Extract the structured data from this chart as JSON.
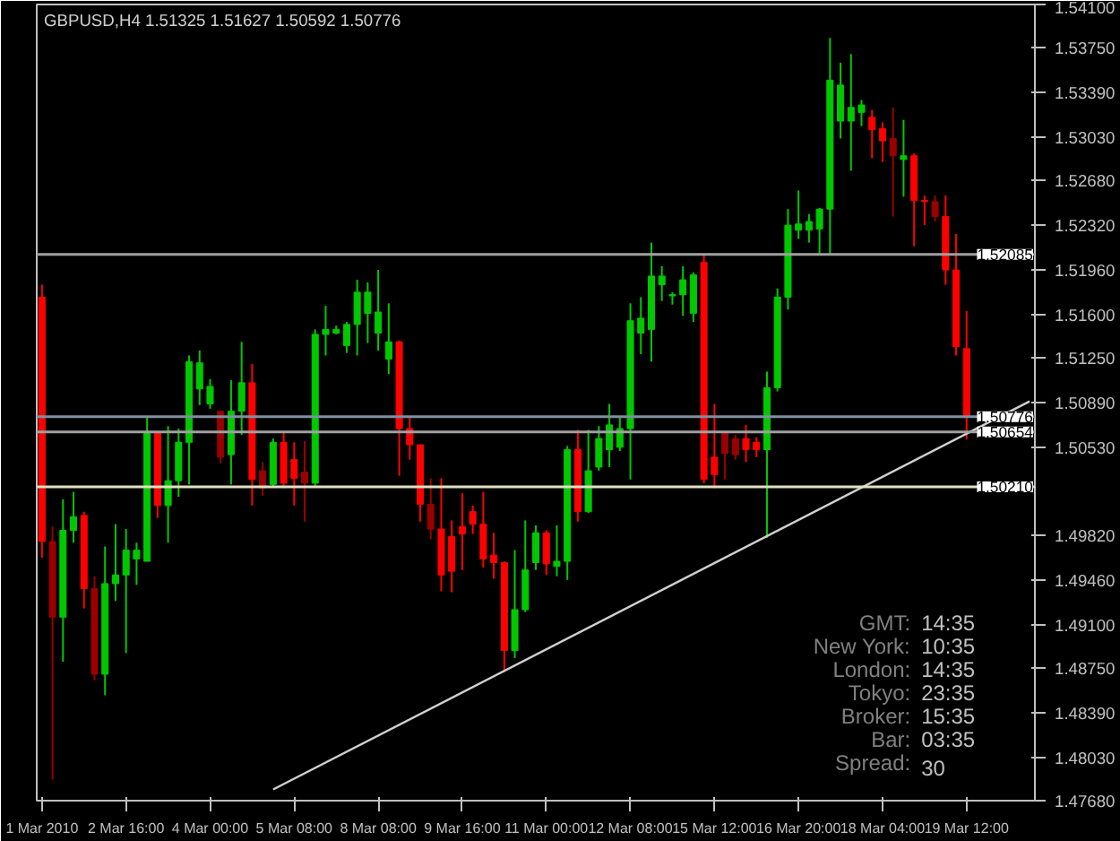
{
  "chart_data": {
    "type": "candlestick",
    "title": "GBPUSD,H4  1.51325 1.51627 1.50592 1.50776",
    "categories": [
      "1 Mar 2010",
      null,
      null,
      null,
      null,
      null,
      null,
      null,
      "2 Mar 16:00",
      null,
      null,
      null,
      null,
      null,
      null,
      null,
      "4 Mar 00:00",
      null,
      null,
      null,
      null,
      null,
      null,
      null,
      "5 Mar 08:00",
      null,
      null,
      null,
      null,
      null,
      null,
      null,
      "8 Mar 08:00",
      null,
      null,
      null,
      null,
      null,
      null,
      null,
      "9 Mar 16:00",
      null,
      null,
      null,
      null,
      null,
      null,
      null,
      "11 Mar 00:00",
      null,
      null,
      null,
      null,
      null,
      null,
      null,
      "12 Mar 08:00",
      null,
      null,
      null,
      null,
      null,
      null,
      null,
      "15 Mar 12:00",
      null,
      null,
      null,
      null,
      null,
      null,
      null,
      "16 Mar 20:00",
      null,
      null,
      null,
      null,
      null,
      null,
      null,
      "18 Mar 04:00",
      null,
      null,
      null,
      null,
      null,
      null,
      null,
      "19 Mar 12:00",
      null,
      null,
      null,
      null,
      null,
      null
    ],
    "ohlc": [
      [
        1.5174,
        1.5184,
        1.4964,
        1.4977
      ],
      [
        1.4977,
        1.4989,
        1.4785,
        1.4916
      ],
      [
        1.4916,
        1.5011,
        1.488,
        1.4986
      ],
      [
        1.4986,
        1.5017,
        1.4976,
        1.4997
      ],
      [
        1.4998,
        1.5001,
        1.4923,
        1.4939
      ],
      [
        1.4939,
        1.4949,
        1.4865,
        1.487
      ],
      [
        1.487,
        1.4973,
        1.4853,
        1.4943
      ],
      [
        1.4943,
        1.4991,
        1.4929,
        1.495
      ],
      [
        1.495,
        1.4987,
        1.4887,
        1.497
      ],
      [
        1.4963,
        1.4976,
        1.4942,
        1.497
      ],
      [
        1.4961,
        1.5077,
        1.4961,
        1.5065
      ],
      [
        1.5065,
        1.5065,
        1.4996,
        1.5006
      ],
      [
        1.5006,
        1.507,
        1.4976,
        1.5026
      ],
      [
        1.5026,
        1.5068,
        1.5013,
        1.5057
      ],
      [
        1.5057,
        1.5127,
        1.5023,
        1.5122
      ],
      [
        1.51,
        1.5131,
        1.5087,
        1.5121
      ],
      [
        1.5088,
        1.5108,
        1.5084,
        1.5102
      ],
      [
        1.5082,
        1.5082,
        1.504,
        1.5045
      ],
      [
        1.5047,
        1.5107,
        1.5023,
        1.5082
      ],
      [
        1.5082,
        1.5138,
        1.5063,
        1.5105
      ],
      [
        1.5105,
        1.512,
        1.5006,
        1.5027
      ],
      [
        1.5034,
        1.5041,
        1.5014,
        1.502
      ],
      [
        1.5023,
        1.506,
        1.5021,
        1.5057
      ],
      [
        1.5057,
        1.5065,
        1.502,
        1.5024
      ],
      [
        1.5043,
        1.5057,
        1.5006,
        1.5028
      ],
      [
        1.5033,
        1.5058,
        1.4993,
        1.5024
      ],
      [
        1.5024,
        1.5148,
        1.5021,
        1.5144
      ],
      [
        1.5144,
        1.5167,
        1.5127,
        1.5148
      ],
      [
        1.5145,
        1.5151,
        1.5144,
        1.5148
      ],
      [
        1.5135,
        1.5154,
        1.5129,
        1.5152
      ],
      [
        1.5152,
        1.5188,
        1.5127,
        1.5178
      ],
      [
        1.5161,
        1.5186,
        1.5137,
        1.5178
      ],
      [
        1.5145,
        1.5196,
        1.5131,
        1.5162
      ],
      [
        1.5124,
        1.5169,
        1.5112,
        1.5138
      ],
      [
        1.5138,
        1.5139,
        1.503,
        1.5068
      ],
      [
        1.5068,
        1.5078,
        1.5043,
        1.5055
      ],
      [
        1.5055,
        1.5055,
        1.4993,
        1.5007
      ],
      [
        1.5007,
        1.5028,
        1.4979,
        1.4987
      ],
      [
        1.4987,
        1.5028,
        1.4937,
        1.495
      ],
      [
        1.4981,
        1.4994,
        1.4936,
        1.4953
      ],
      [
        1.4989,
        1.5016,
        1.4954,
        1.4983
      ],
      [
        1.5001,
        1.5006,
        1.4983,
        1.4991
      ],
      [
        1.4991,
        1.5017,
        1.4956,
        1.4963
      ],
      [
        1.4966,
        1.4984,
        1.4947,
        1.496
      ],
      [
        1.496,
        1.4961,
        1.4872,
        1.4889
      ],
      [
        1.4889,
        1.497,
        1.4883,
        1.4922
      ],
      [
        1.4922,
        1.4994,
        1.492,
        1.4954
      ],
      [
        1.496,
        1.499,
        1.4954,
        1.4984
      ],
      [
        1.4984,
        1.4986,
        1.495,
        1.4959
      ],
      [
        1.4957,
        1.499,
        1.4949,
        1.4961
      ],
      [
        1.4961,
        1.5054,
        1.4946,
        1.5051
      ],
      [
        1.5051,
        1.5067,
        1.4993,
        1.5001
      ],
      [
        1.5001,
        1.5067,
        1.5,
        1.5034
      ],
      [
        1.5037,
        1.507,
        1.5034,
        1.506
      ],
      [
        1.5051,
        1.5088,
        1.5037,
        1.5071
      ],
      [
        1.5053,
        1.5077,
        1.505,
        1.5068
      ],
      [
        1.5068,
        1.5169,
        1.5027,
        1.5155
      ],
      [
        1.5145,
        1.5174,
        1.5128,
        1.5157
      ],
      [
        1.5148,
        1.5218,
        1.5122,
        1.5191
      ],
      [
        1.5184,
        1.5199,
        1.5171,
        1.5191
      ],
      [
        1.5175,
        1.5178,
        1.5168,
        1.5176
      ],
      [
        1.5176,
        1.5199,
        1.5159,
        1.5188
      ],
      [
        1.5161,
        1.5194,
        1.5154,
        1.5192
      ],
      [
        1.5202,
        1.5208,
        1.5024,
        1.5027
      ],
      [
        1.5045,
        1.5088,
        1.502,
        1.5031
      ],
      [
        1.5064,
        1.5064,
        1.5027,
        1.5048
      ],
      [
        1.506,
        1.5063,
        1.5043,
        1.5047
      ],
      [
        1.506,
        1.5071,
        1.5041,
        1.5051
      ],
      [
        1.5057,
        1.5061,
        1.5045,
        1.5051
      ],
      [
        1.5051,
        1.5114,
        1.498,
        1.5101
      ],
      [
        1.5101,
        1.5181,
        1.5098,
        1.5174
      ],
      [
        1.5174,
        1.5245,
        1.5164,
        1.5232
      ],
      [
        1.5228,
        1.526,
        1.5221,
        1.5233
      ],
      [
        1.5228,
        1.5241,
        1.5218,
        1.5235
      ],
      [
        1.5229,
        1.5246,
        1.5208,
        1.5245
      ],
      [
        1.5245,
        1.5383,
        1.5209,
        1.5349
      ],
      [
        1.5316,
        1.5363,
        1.5302,
        1.5345
      ],
      [
        1.5316,
        1.537,
        1.5276,
        1.5327
      ],
      [
        1.5323,
        1.5333,
        1.5312,
        1.5329
      ],
      [
        1.5319,
        1.5325,
        1.5286,
        1.5309
      ],
      [
        1.531,
        1.5315,
        1.5283,
        1.53
      ],
      [
        1.5302,
        1.5327,
        1.5239,
        1.5288
      ],
      [
        1.5285,
        1.5317,
        1.5255,
        1.5288
      ],
      [
        1.5288,
        1.529,
        1.5215,
        1.5252
      ],
      [
        1.5252,
        1.5256,
        1.5232,
        1.5251
      ],
      [
        1.5251,
        1.5256,
        1.5235,
        1.5239
      ],
      [
        1.5239,
        1.5256,
        1.5184,
        1.5196
      ],
      [
        1.5196,
        1.5225,
        1.5127,
        1.5134
      ],
      [
        1.51325,
        1.51627,
        1.50592,
        1.50776
      ],
      null,
      null,
      null,
      null,
      null,
      null
    ],
    "colors": [
      "#ff0000",
      "#990000",
      "#00c800",
      "#00c800",
      "#ff0000",
      "#990000",
      "#00c800",
      "#00c800",
      "#00c800",
      "#00c800",
      "#00c800",
      "#ff0000",
      "#00c800",
      "#00c800",
      "#00c800",
      "#00c800",
      "#00c800",
      "#990000",
      "#00c800",
      "#00c800",
      "#ff0000",
      "#990000",
      "#00c800",
      "#ff0000",
      "#ff0000",
      "#990000",
      "#00c800",
      "#00c800",
      "#00c800",
      "#00c800",
      "#00c800",
      "#00c800",
      "#00c800",
      "#00c800",
      "#ff0000",
      "#ff0000",
      "#ff0000",
      "#990000",
      "#ff0000",
      "#ff0000",
      "#ff0000",
      "#ff0000",
      "#ff0000",
      "#ff0000",
      "#ff0000",
      "#00c800",
      "#00c800",
      "#00c800",
      "#ff0000",
      "#00c800",
      "#00c800",
      "#ff0000",
      "#00c800",
      "#00c800",
      "#00c800",
      "#00c800",
      "#00c800",
      "#00c800",
      "#00c800",
      "#00c800",
      "#00c800",
      "#00c800",
      "#00c800",
      "#ff0000",
      "#ff0000",
      "#990000",
      "#990000",
      "#ff0000",
      "#ff0000",
      "#00c800",
      "#00c800",
      "#00c800",
      "#00c800",
      "#00c800",
      "#00c800",
      "#00c800",
      "#00c800",
      "#00c800",
      "#00c800",
      "#ff0000",
      "#ff0000",
      "#990000",
      "#00c800",
      "#ff0000",
      "#ff0000",
      "#990000",
      "#ff0000",
      "#ff0000",
      "#ff0000",
      null,
      null,
      null,
      null,
      null,
      null
    ],
    "series": [
      {
        "type": "line",
        "values": [
          null,
          null,
          null,
          null,
          null,
          null,
          null,
          null,
          null,
          null,
          null,
          null,
          null,
          null,
          null,
          null,
          null,
          null,
          null,
          null,
          null,
          null,
          1.4777,
          null,
          null,
          null,
          null,
          null,
          null,
          null,
          null,
          null,
          null,
          null,
          null,
          null,
          null,
          null,
          null,
          null,
          null,
          null,
          null,
          null,
          null,
          null,
          null,
          null,
          null,
          null,
          null,
          null,
          null,
          null,
          null,
          null,
          null,
          null,
          null,
          null,
          null,
          null,
          null,
          null,
          null,
          null,
          null,
          null,
          null,
          null,
          null,
          null,
          null,
          null,
          null,
          null,
          null,
          null,
          null,
          null,
          null,
          null,
          null,
          null,
          null,
          null,
          null,
          null,
          null,
          null,
          null,
          null,
          null,
          null,
          1.509
        ],
        "color": "#d0d0d0"
      }
    ],
    "ref_lines": [
      {
        "axis": "y",
        "value": 1.52085,
        "label": "1.52085",
        "color": "#a0a0a0"
      },
      {
        "axis": "y",
        "value": 1.50776,
        "label": "1.50776",
        "color": "#7f8fa0"
      },
      {
        "axis": "y",
        "value": 1.50654,
        "label": "1.50654",
        "color": "#a0a0a0"
      },
      {
        "axis": "y",
        "value": 1.5021,
        "label": "1.50210",
        "color": "#e0e0c0"
      }
    ],
    "ylim": [
      1.4768,
      1.541
    ],
    "yticks": [
      {
        "value": 1.541,
        "label": "1.54100"
      },
      {
        "value": 1.5375,
        "label": "1.53750"
      },
      {
        "value": 1.5339,
        "label": "1.53390"
      },
      {
        "value": 1.5303,
        "label": "1.53030"
      },
      {
        "value": 1.5268,
        "label": "1.52680"
      },
      {
        "value": 1.5232,
        "label": "1.52320"
      },
      {
        "value": 1.5196,
        "label": "1.51960"
      },
      {
        "value": 1.516,
        "label": "1.51600"
      },
      {
        "value": 1.5125,
        "label": "1.51250"
      },
      {
        "value": 1.5089,
        "label": "1.50890"
      },
      {
        "value": 1.5053,
        "label": "1.50530"
      },
      {
        "value": 1.4982,
        "label": "1.49820"
      },
      {
        "value": 1.4946,
        "label": "1.49460"
      },
      {
        "value": 1.491,
        "label": "1.49100"
      },
      {
        "value": 1.4875,
        "label": "1.48750"
      },
      {
        "value": 1.4839,
        "label": "1.48390"
      },
      {
        "value": 1.4803,
        "label": "1.48030"
      },
      {
        "value": 1.4768,
        "label": "1.47680"
      }
    ],
    "annotations": [
      "GMT: 14:35",
      "New York: 10:35",
      "London: 14:35",
      "Tokyo: 23:35",
      "Broker: 15:35",
      "Bar: 03:35",
      "Spread: 30"
    ]
  }
}
